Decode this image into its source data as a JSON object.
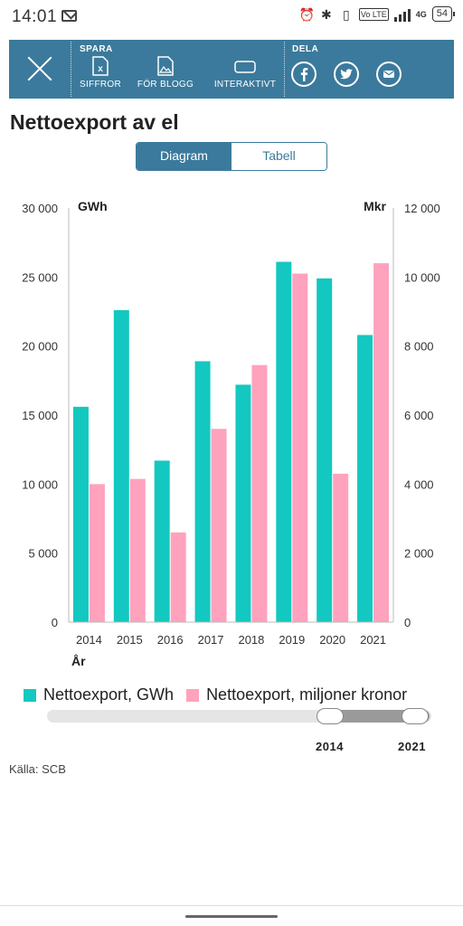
{
  "status": {
    "time": "14:01",
    "battery": "54",
    "network": "4G",
    "lte": "Vo LTE"
  },
  "toolbar": {
    "save_heading": "SPARA",
    "share_heading": "DELA",
    "items": [
      {
        "label": "SIFFROR",
        "icon": "excel-icon"
      },
      {
        "label": "FÖR BLOGG",
        "icon": "image-icon"
      },
      {
        "label": "INTERAKTIVT",
        "icon": "embed-icon"
      }
    ],
    "share": [
      "facebook-icon",
      "twitter-icon",
      "email-icon"
    ]
  },
  "page": {
    "title": "Nettoexport av el",
    "tabs": {
      "active": "Diagram",
      "inactive": "Tabell"
    },
    "source": "Källa: SCB"
  },
  "colors": {
    "accent": "#3b7a9c",
    "series_gwh": "#13c8c0",
    "series_mkr": "#ffa2bd"
  },
  "chart_data": {
    "type": "bar",
    "categories": [
      "2014",
      "2015",
      "2016",
      "2017",
      "2018",
      "2019",
      "2020",
      "2021"
    ],
    "series": [
      {
        "name": "Nettoexport, GWh",
        "axis": "left",
        "values": [
          15600,
          22600,
          11700,
          18900,
          17200,
          26100,
          24900,
          20800
        ]
      },
      {
        "name": "Nettoexport, miljoner kronor",
        "axis": "right",
        "values": [
          4000,
          4150,
          2600,
          5600,
          7450,
          10100,
          4300,
          10400
        ]
      }
    ],
    "xlabel": "År",
    "ylabel_left": "GWh",
    "ylabel_right": "Mkr",
    "ylim_left": [
      0,
      30000
    ],
    "ylim_right": [
      0,
      12000
    ],
    "yticks_left": [
      "0",
      "5 000",
      "10 000",
      "15 000",
      "20 000",
      "25 000",
      "30 000"
    ],
    "yticks_right": [
      "0",
      "2 000",
      "4 000",
      "6 000",
      "8 000",
      "10 000",
      "12 000"
    ],
    "grid": false
  },
  "range_slider": {
    "from": "2014",
    "to": "2021"
  }
}
